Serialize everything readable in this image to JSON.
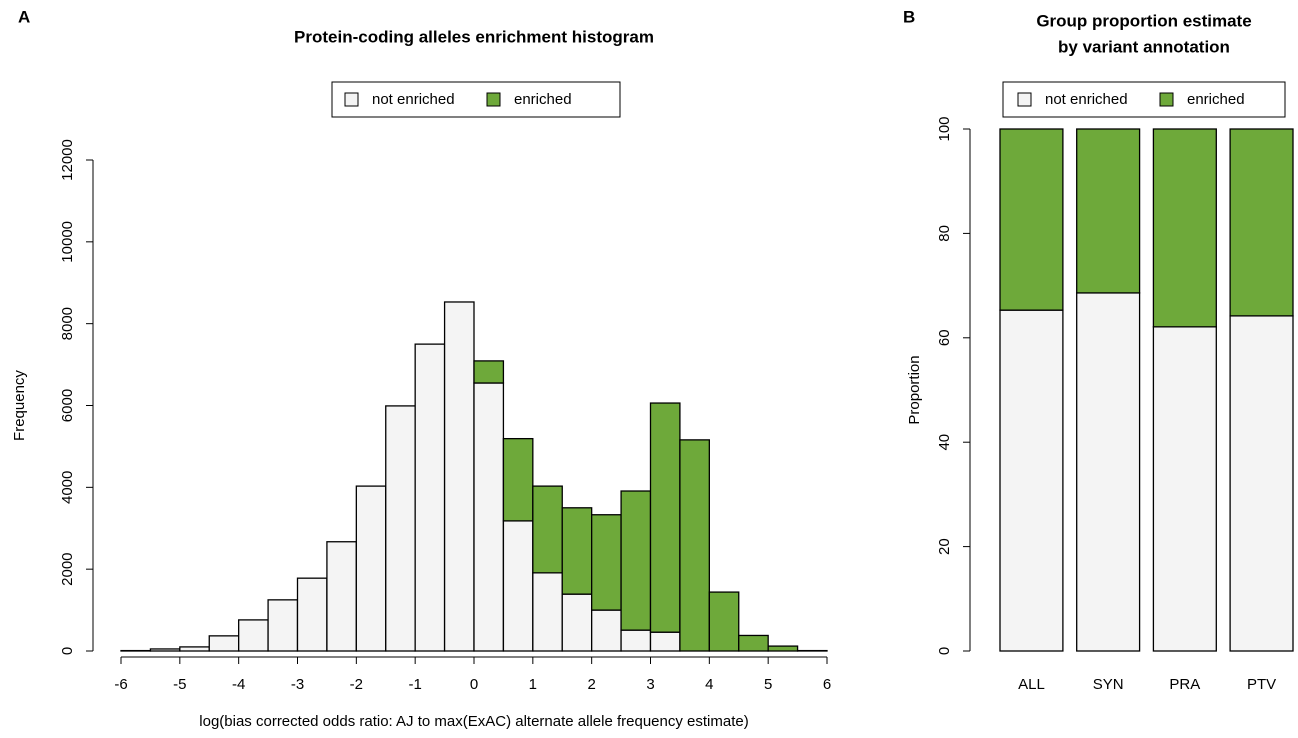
{
  "chart_data": [
    {
      "type": "histogram",
      "panel_label": "A",
      "title": [
        "Protein-coding alleles enrichment histogram"
      ],
      "xlabel": "log(bias corrected odds ratio: AJ to max(ExAC) alternate allele frequency estimate)",
      "ylabel": "Frequency",
      "bins": [
        -6,
        -5.5,
        -5,
        -4.5,
        -4,
        -3.5,
        -3,
        -2.5,
        -2,
        -1.5,
        -1,
        -0.5,
        0,
        0.5,
        1,
        1.5,
        2,
        2.5,
        3,
        3.5,
        4,
        4.5,
        5,
        5.5,
        6
      ],
      "series": [
        {
          "name": "not enriched",
          "color": "#f4f4f4",
          "values": [
            10,
            50,
            100,
            370,
            760,
            1250,
            1780,
            2670,
            4030,
            5990,
            7500,
            8530,
            6550,
            3180,
            1910,
            1390,
            1000,
            510,
            460,
            0,
            0,
            0,
            0,
            0
          ]
        },
        {
          "name": "enriched",
          "color": "#6ea93a",
          "values": [
            0,
            0,
            0,
            0,
            0,
            0,
            0,
            0,
            0,
            0,
            0,
            0,
            540,
            2010,
            2120,
            2110,
            2330,
            3400,
            5600,
            5160,
            1440,
            380,
            120,
            10
          ]
        }
      ],
      "xlim": [
        -6,
        6
      ],
      "xticks": [
        -6,
        -5,
        -4,
        -3,
        -2,
        -1,
        0,
        1,
        2,
        3,
        4,
        5,
        6
      ],
      "ylim": [
        0,
        12000
      ],
      "yticks": [
        0,
        2000,
        4000,
        6000,
        8000,
        10000,
        12000
      ],
      "legend": "top"
    },
    {
      "type": "bar",
      "panel_label": "B",
      "title": [
        "Group proportion estimate",
        "by variant annotation"
      ],
      "ylabel": "Proportion",
      "categories": [
        "ALL",
        "SYN",
        "PRA",
        "PTV"
      ],
      "series": [
        {
          "name": "not enriched",
          "color": "#f4f4f4",
          "values": [
            65.3,
            68.6,
            62.1,
            64.2
          ]
        },
        {
          "name": "enriched",
          "color": "#6ea93a",
          "values": [
            34.7,
            31.4,
            37.9,
            35.8
          ]
        }
      ],
      "ylim": [
        0,
        100
      ],
      "yticks": [
        0,
        20,
        40,
        60,
        80,
        100
      ],
      "legend": "top"
    }
  ]
}
